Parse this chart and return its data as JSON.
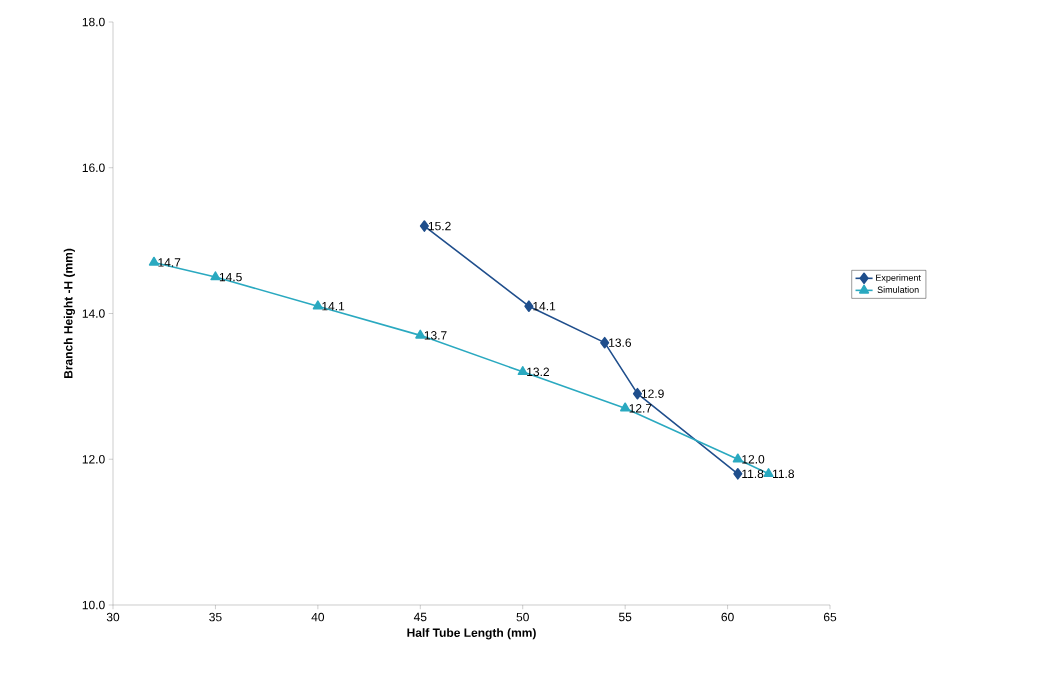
{
  "chart_data": {
    "type": "line",
    "xlabel": "Half Tube Length  (mm)",
    "ylabel": "Branch Height -H (mm)",
    "xlim": [
      30,
      65
    ],
    "xticks": [
      30,
      35,
      40,
      45,
      50,
      55,
      60,
      65
    ],
    "ylim": [
      10,
      18
    ],
    "yticks": [
      {
        "value": 10,
        "label": "10.0"
      },
      {
        "value": 12,
        "label": "12.0"
      },
      {
        "value": 14,
        "label": "14.0"
      },
      {
        "value": 16,
        "label": "16.0"
      },
      {
        "value": 18,
        "label": "18.0"
      }
    ],
    "grid": false,
    "legend": "right",
    "series": [
      {
        "name": "Experiment",
        "color": "#1f4e8c",
        "marker": "diamond",
        "x": [
          45.2,
          50.3,
          54.0,
          55.6,
          60.5
        ],
        "values": [
          15.2,
          14.1,
          13.6,
          12.9,
          11.8
        ],
        "value_labels": [
          "15.2",
          "14.1",
          "13.6",
          "12.9",
          "11.8"
        ]
      },
      {
        "name": "Simulation",
        "color": "#2aa9c0",
        "marker": "triangle",
        "x": [
          32,
          35,
          40,
          45,
          50,
          55,
          60.5,
          62
        ],
        "values": [
          14.7,
          14.5,
          14.1,
          13.7,
          13.2,
          12.7,
          12.0,
          11.8
        ],
        "value_labels": [
          "14.7",
          "14.5",
          "14.1",
          "13.7",
          "13.2",
          "12.7",
          "12.0",
          "11.8"
        ]
      }
    ]
  }
}
